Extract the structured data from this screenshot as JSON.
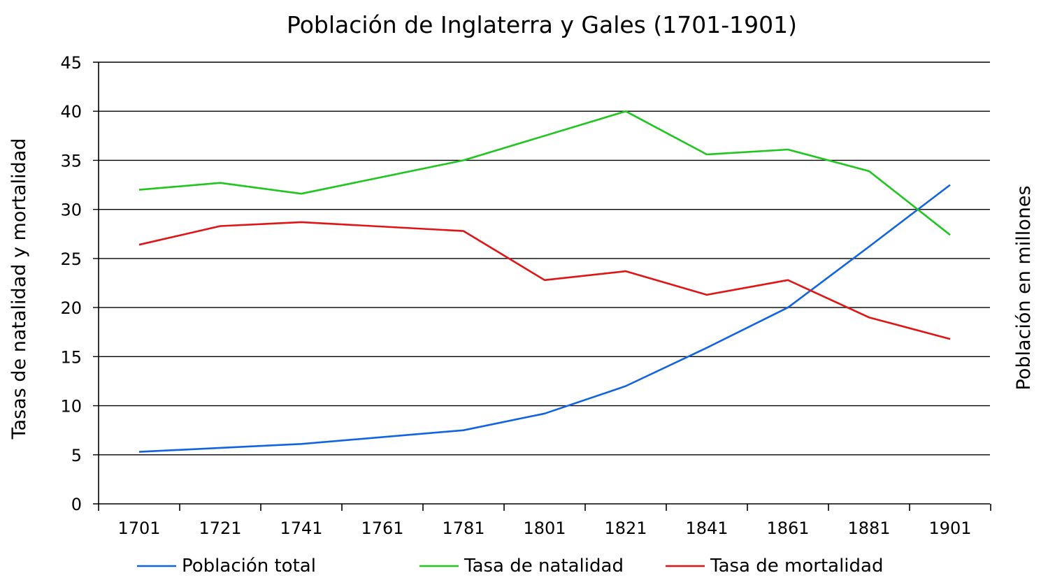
{
  "chart_data": {
    "type": "line",
    "title": "Población de Inglaterra y Gales (1701-1901)",
    "ylabel_left": "Tasas de natalidad y mortalidad",
    "ylabel_right": "Población en millones",
    "xlabel": "",
    "x": [
      1701,
      1721,
      1741,
      1761,
      1781,
      1801,
      1821,
      1841,
      1861,
      1881,
      1901
    ],
    "x_tick_labels": [
      "1701",
      "1721",
      "1741",
      "1761",
      "1781",
      "1801",
      "1821",
      "1841",
      "1861",
      "1881",
      "1901"
    ],
    "y_ticks": [
      0,
      5,
      10,
      15,
      20,
      25,
      30,
      35,
      40,
      45
    ],
    "ylim": [
      0,
      45
    ],
    "grid": true,
    "legend_position": "bottom",
    "series": [
      {
        "name": "Población total",
        "color": "#1164e0",
        "points": [
          [
            1701,
            5.3
          ],
          [
            1721,
            5.7
          ],
          [
            1741,
            6.1
          ],
          [
            1781,
            7.5
          ],
          [
            1801,
            9.2
          ],
          [
            1821,
            12.0
          ],
          [
            1841,
            15.9
          ],
          [
            1861,
            20.0
          ],
          [
            1881,
            26.2
          ],
          [
            1901,
            32.5
          ]
        ]
      },
      {
        "name": "Tasa de natalidad",
        "color": "#1ec61e",
        "points": [
          [
            1701,
            32.0
          ],
          [
            1721,
            32.7
          ],
          [
            1741,
            31.6
          ],
          [
            1781,
            35.0
          ],
          [
            1821,
            40.0
          ],
          [
            1841,
            35.6
          ],
          [
            1861,
            36.1
          ],
          [
            1881,
            33.9
          ],
          [
            1901,
            27.4
          ]
        ]
      },
      {
        "name": "Tasa de mortalidad",
        "color": "#e01414",
        "points": [
          [
            1701,
            26.4
          ],
          [
            1721,
            28.3
          ],
          [
            1741,
            28.7
          ],
          [
            1781,
            27.8
          ],
          [
            1801,
            22.8
          ],
          [
            1821,
            23.7
          ],
          [
            1841,
            21.3
          ],
          [
            1861,
            22.8
          ],
          [
            1881,
            19.0
          ],
          [
            1901,
            16.8
          ]
        ]
      }
    ]
  }
}
